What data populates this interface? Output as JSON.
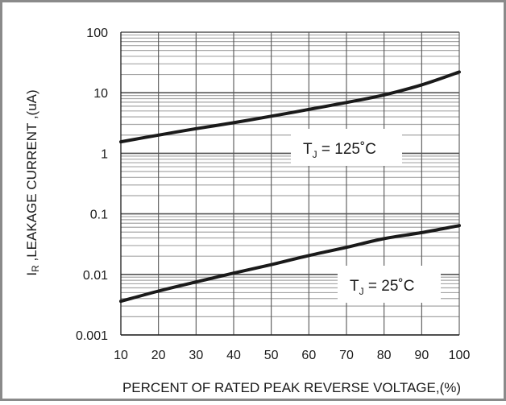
{
  "chart_data": {
    "type": "line",
    "xlabel": "PERCENT OF RATED PEAK REVERSE VOLTAGE,(%)",
    "ylabel_prefix": "I",
    "ylabel_sub": "R",
    "ylabel_rest": " ,LEAKAGE  CURRENT ,(uA)",
    "xlim": [
      10,
      100
    ],
    "ylim": [
      0.001,
      100
    ],
    "yscale": "log",
    "grid": true,
    "x_ticks": [
      "10",
      "20",
      "30",
      "40",
      "50",
      "60",
      "70",
      "80",
      "90",
      "100"
    ],
    "y_ticks": [
      "0.001",
      "0.01",
      "0.1",
      "1",
      "10",
      "100"
    ],
    "series": [
      {
        "label_main": "T",
        "label_sub": "J",
        "label_rest": " = 125˚C",
        "color": "#1a1a1a",
        "x": [
          10,
          20,
          30,
          40,
          50,
          60,
          70,
          80,
          90,
          100
        ],
        "y": [
          1.55,
          2.0,
          2.55,
          3.2,
          4.1,
          5.3,
          6.9,
          9.2,
          13.5,
          22.0
        ]
      },
      {
        "label_main": "T",
        "label_sub": "J",
        "label_rest": " = 25˚C",
        "color": "#1a1a1a",
        "x": [
          10,
          20,
          30,
          40,
          50,
          60,
          70,
          80,
          90,
          100
        ],
        "y": [
          0.0036,
          0.0053,
          0.0075,
          0.0105,
          0.0145,
          0.0205,
          0.028,
          0.039,
          0.049,
          0.064
        ]
      }
    ]
  }
}
